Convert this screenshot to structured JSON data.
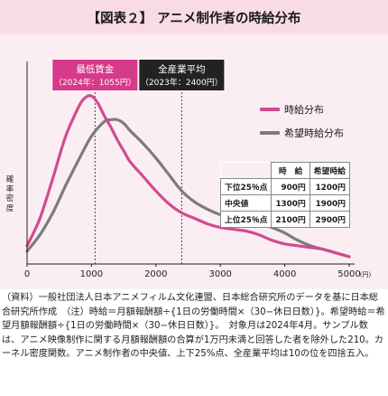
{
  "figure_title": "【図表２】 アニメ制作者の時給分布",
  "chart_data": {
    "type": "line",
    "ylabel": "確率密度",
    "xlim": [
      0,
      5000
    ],
    "x_ticks": [
      "0",
      "1000",
      "2000",
      "3000",
      "4000",
      "5000"
    ],
    "x_unit": "(円)",
    "legend_position": "top-right",
    "series": [
      {
        "name": "時給分布",
        "color": "#d14b8f",
        "x": [
          0,
          200,
          400,
          600,
          800,
          900,
          1000,
          1100,
          1200,
          1300,
          1400,
          1500,
          1600,
          1800,
          2000,
          2200,
          2400,
          2600,
          2800,
          3000,
          3200,
          3400,
          3600,
          3800,
          4000,
          4200,
          4400,
          4600,
          4800,
          5000
        ],
        "y": [
          0.1,
          0.25,
          0.47,
          0.7,
          0.86,
          0.91,
          0.92,
          0.88,
          0.81,
          0.75,
          0.68,
          0.62,
          0.56,
          0.48,
          0.4,
          0.33,
          0.28,
          0.25,
          0.22,
          0.2,
          0.19,
          0.18,
          0.16,
          0.13,
          0.11,
          0.1,
          0.09,
          0.08,
          0.06,
          0.04
        ]
      },
      {
        "name": "希望時給分布",
        "color": "#7c7c7c",
        "x": [
          0,
          200,
          400,
          600,
          800,
          1000,
          1200,
          1300,
          1400,
          1500,
          1600,
          1800,
          2000,
          2200,
          2400,
          2600,
          2800,
          3000,
          3200,
          3400,
          3600,
          3800,
          4000,
          4200,
          4400,
          4600,
          4800,
          5000
        ],
        "y": [
          0.07,
          0.16,
          0.28,
          0.43,
          0.57,
          0.7,
          0.78,
          0.79,
          0.79,
          0.77,
          0.73,
          0.66,
          0.58,
          0.49,
          0.4,
          0.34,
          0.3,
          0.27,
          0.25,
          0.23,
          0.22,
          0.2,
          0.17,
          0.13,
          0.1,
          0.08,
          0.06,
          0.04
        ]
      }
    ],
    "reference_lines": [
      {
        "name": "最低賃金",
        "detail": "（2024年：1055円）",
        "x": 1055,
        "color": "#d63a8a"
      },
      {
        "name": "全産業平均",
        "detail": "（2023年：2400円）",
        "x": 2400,
        "color": "#222222"
      }
    ]
  },
  "stats_table": {
    "headers": [
      "時　給",
      "希望時給"
    ],
    "rows": [
      {
        "label": "下位25％点",
        "wage": "900円",
        "hope": "1200円"
      },
      {
        "label": "中央値",
        "wage": "1300円",
        "hope": "1900円"
      },
      {
        "label": "上位25％点",
        "wage": "2100円",
        "hope": "2900円"
      }
    ]
  },
  "note": "（資料）一般社団法人日本アニメフィルム文化連盟、日本総合研究所のデータを基に日本総合研究所作成　（注）時給＝月額報酬額÷{1日の労働時間×（30−休日日数）}。希望時給＝希望月額報酬額÷{1日の労働時間×（30−休日日数）}。　対象月は2024年4月。サンプル数は、アニメ映像制作に関する月額報酬額の合算が1万円未満と回答した者を除外した210。カーネル密度関数。アニメ制作者の中央値、上下25%点、全産業平均は10の位を四捨五入。"
}
